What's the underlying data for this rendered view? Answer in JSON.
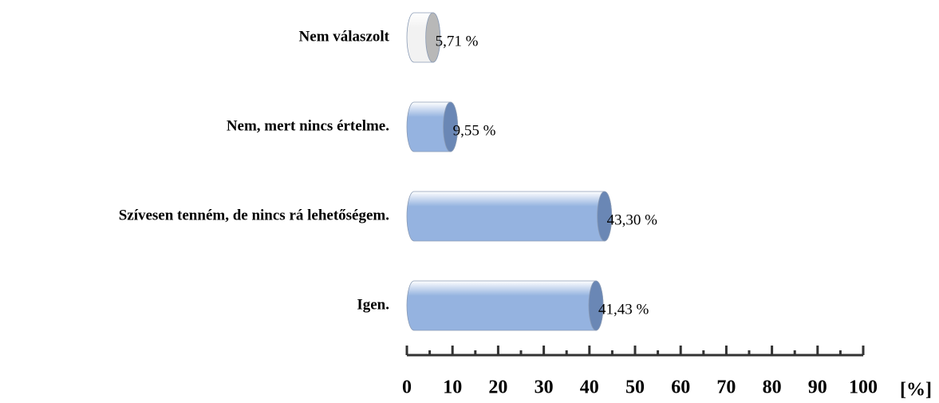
{
  "chart_data": {
    "type": "hbar",
    "categories": [
      "Nem válaszolt",
      "Nem, mert nincs értelme.",
      "Szívesen tenném, de nincs rá lehetőségem.",
      "Igen."
    ],
    "values": [
      5.71,
      9.55,
      43.3,
      41.43
    ],
    "value_labels": [
      "5,71 %",
      "9,55 %",
      "43,30 %",
      "41,43 %"
    ],
    "colors": [
      "#f2f2f2",
      "#95b3e0",
      "#95b3e0",
      "#95b3e0"
    ],
    "xlabel": "[%]",
    "xlim": [
      0,
      100
    ],
    "xticks": [
      0,
      10,
      20,
      30,
      40,
      50,
      60,
      70,
      80,
      90,
      100
    ],
    "xticks_minor": [
      5,
      15,
      25,
      35,
      45,
      55,
      65,
      75,
      85,
      95
    ]
  }
}
